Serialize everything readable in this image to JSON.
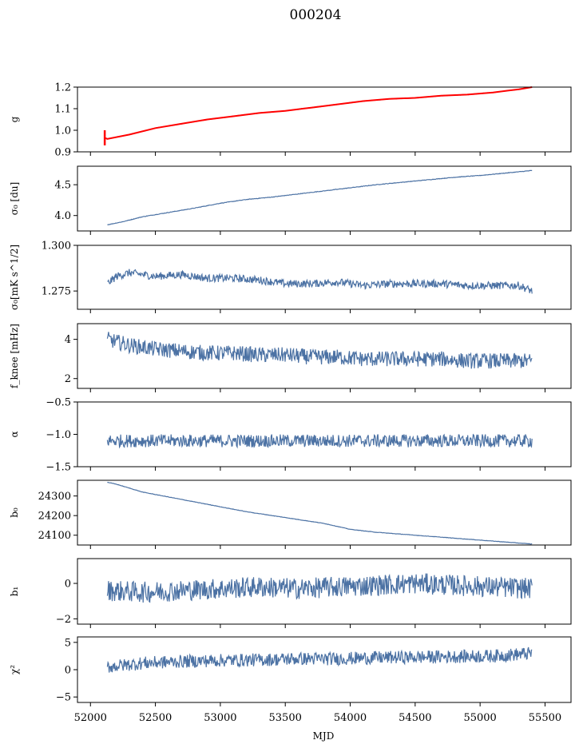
{
  "title": "000204",
  "xlabel": "MJD",
  "x_ticks": [
    52000,
    52500,
    53000,
    53500,
    54000,
    54500,
    55000,
    55500
  ],
  "line_color": "#4c72a4",
  "overlay_color": "#ff0000",
  "chart_data": [
    {
      "type": "line",
      "ylabel": "g",
      "ylim": [
        0.9,
        1.2
      ],
      "y_ticks": [
        0.9,
        1.0,
        1.1,
        1.2
      ],
      "y_tick_labels": [
        "0.9",
        "1.0",
        "1.1",
        "1.2"
      ],
      "xlim": [
        51900,
        55700
      ],
      "series": [
        {
          "x": [
            52130,
            52300,
            52500,
            52700,
            52900,
            53100,
            53300,
            53500,
            53700,
            53900,
            54100,
            54300,
            54500,
            54700,
            54900,
            55100,
            55300,
            55400
          ],
          "y": [
            0.96,
            0.98,
            1.01,
            1.03,
            1.05,
            1.065,
            1.08,
            1.09,
            1.105,
            1.12,
            1.135,
            1.145,
            1.15,
            1.16,
            1.165,
            1.175,
            1.19,
            1.2
          ]
        }
      ],
      "overlay": {
        "x": [
          52110,
          52130,
          52300,
          52500,
          52700,
          52900,
          53100,
          53300,
          53500,
          53700,
          53900,
          54100,
          54300,
          54500,
          54700,
          54900,
          55100,
          55300,
          55400
        ],
        "y": [
          0.965,
          0.96,
          0.98,
          1.01,
          1.03,
          1.05,
          1.065,
          1.08,
          1.09,
          1.105,
          1.12,
          1.135,
          1.145,
          1.15,
          1.16,
          1.165,
          1.175,
          1.19,
          1.2
        ],
        "errorbar": {
          "x": 52110,
          "ymin": 0.93,
          "ymax": 1.0
        }
      }
    },
    {
      "type": "line",
      "ylabel": "σ₀ [du]",
      "ylim": [
        3.75,
        4.8
      ],
      "y_ticks": [
        4.0,
        4.5
      ],
      "y_tick_labels": [
        "4.0",
        "4.5"
      ],
      "xlim": [
        51900,
        55700
      ],
      "series": [
        {
          "x": [
            52130,
            52250,
            52400,
            52600,
            52800,
            53000,
            53200,
            53400,
            53600,
            53800,
            54000,
            54200,
            54400,
            54600,
            54800,
            55000,
            55200,
            55400
          ],
          "y": [
            3.85,
            3.9,
            3.98,
            4.05,
            4.12,
            4.2,
            4.26,
            4.3,
            4.35,
            4.4,
            4.45,
            4.5,
            4.54,
            4.58,
            4.62,
            4.65,
            4.69,
            4.73
          ]
        }
      ]
    },
    {
      "type": "line",
      "ylabel": "σ₀[mK s^1/2]",
      "ylim": [
        1.265,
        1.3
      ],
      "y_ticks": [
        1.275,
        1.3
      ],
      "y_tick_labels": [
        "1.275",
        "1.300"
      ],
      "xlim": [
        51900,
        55700
      ],
      "series": [
        {
          "x": [
            52130,
            52200,
            52300,
            52500,
            52700,
            52900,
            53100,
            53300,
            53500,
            53700,
            53900,
            54100,
            54300,
            54500,
            54700,
            54900,
            55100,
            55300,
            55400
          ],
          "y": [
            1.279,
            1.283,
            1.285,
            1.283,
            1.284,
            1.282,
            1.282,
            1.281,
            1.279,
            1.279,
            1.28,
            1.278,
            1.279,
            1.279,
            1.279,
            1.278,
            1.278,
            1.278,
            1.275
          ]
        }
      ]
    },
    {
      "type": "line",
      "ylabel": "f_knee [mHz]",
      "ylim": [
        1.5,
        4.8
      ],
      "y_ticks": [
        2,
        4
      ],
      "y_tick_labels": [
        "2",
        "4"
      ],
      "xlim": [
        51900,
        55700
      ],
      "series": [
        {
          "x": [
            52130,
            52300,
            52500,
            52700,
            52900,
            53100,
            53300,
            53500,
            53700,
            53900,
            54100,
            54300,
            54500,
            54700,
            54900,
            55100,
            55300,
            55400
          ],
          "y": [
            4.0,
            3.7,
            3.5,
            3.4,
            3.3,
            3.3,
            3.2,
            3.2,
            3.1,
            3.1,
            3.0,
            3.0,
            3.0,
            3.0,
            2.9,
            2.9,
            2.9,
            2.9
          ]
        }
      ]
    },
    {
      "type": "line",
      "ylabel": "α",
      "ylim": [
        -1.5,
        -0.5
      ],
      "y_ticks": [
        -1.5,
        -1.0,
        -0.5
      ],
      "y_tick_labels": [
        "−1.5",
        "−1.0",
        "−0.5"
      ],
      "xlim": [
        51900,
        55700
      ],
      "series": [
        {
          "x": [
            52130,
            52500,
            53000,
            53500,
            54000,
            54500,
            55000,
            55400
          ],
          "y": [
            -1.1,
            -1.1,
            -1.1,
            -1.1,
            -1.1,
            -1.1,
            -1.1,
            -1.1
          ]
        }
      ]
    },
    {
      "type": "line",
      "ylabel": "b₀",
      "ylim": [
        24050,
        24380
      ],
      "y_ticks": [
        24100,
        24200,
        24300
      ],
      "y_tick_labels": [
        "24100",
        "24200",
        "24300"
      ],
      "xlim": [
        51900,
        55700
      ],
      "series": [
        {
          "x": [
            52130,
            52200,
            52300,
            52400,
            52600,
            52800,
            53000,
            53200,
            53400,
            53600,
            53800,
            54000,
            54200,
            54400,
            54600,
            54800,
            55000,
            55200,
            55400
          ],
          "y": [
            24370,
            24360,
            24340,
            24320,
            24295,
            24270,
            24245,
            24220,
            24200,
            24180,
            24160,
            24130,
            24115,
            24105,
            24095,
            24085,
            24075,
            24065,
            24055
          ]
        }
      ]
    },
    {
      "type": "line",
      "ylabel": "b₁",
      "ylim": [
        -2.3,
        1.4
      ],
      "y_ticks": [
        -2,
        0
      ],
      "y_tick_labels": [
        "−2",
        "0"
      ],
      "xlim": [
        51900,
        55700
      ],
      "series": [
        {
          "x": [
            52130,
            52400,
            52700,
            53000,
            53300,
            53600,
            53900,
            54200,
            54500,
            54800,
            55100,
            55400
          ],
          "y": [
            -0.4,
            -0.5,
            -0.4,
            -0.3,
            -0.2,
            -0.3,
            -0.2,
            -0.1,
            0.0,
            -0.1,
            -0.2,
            -0.3
          ]
        }
      ]
    },
    {
      "type": "line",
      "ylabel": "χ²",
      "ylim": [
        -6,
        6
      ],
      "y_ticks": [
        -5,
        0,
        5
      ],
      "y_tick_labels": [
        "−5",
        "0",
        "5"
      ],
      "xlim": [
        51900,
        55700
      ],
      "series": [
        {
          "x": [
            52130,
            52400,
            52700,
            53000,
            53300,
            53600,
            53900,
            54200,
            54500,
            54800,
            55100,
            55400
          ],
          "y": [
            0.5,
            1.2,
            1.5,
            1.7,
            1.8,
            2.0,
            2.0,
            2.2,
            2.3,
            2.4,
            2.5,
            3.0
          ]
        }
      ]
    }
  ]
}
